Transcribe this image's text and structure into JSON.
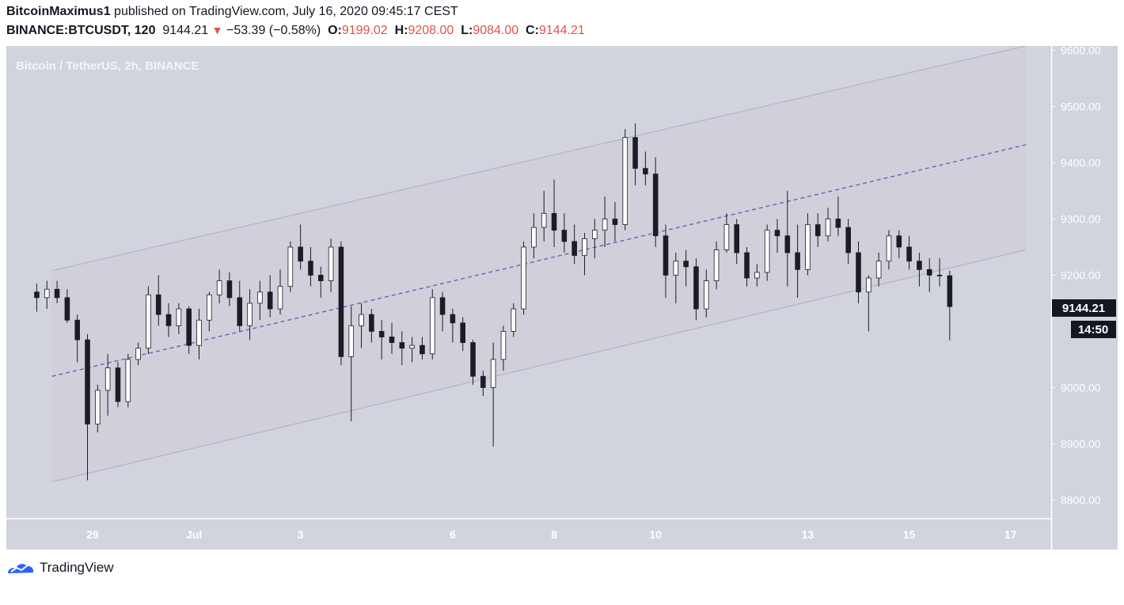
{
  "header": {
    "author": "BitcoinMaximus1",
    "published_text": "published on TradingView.com, July 16, 2020 09:45:17 CEST",
    "symbol": "BINANCE:BTCUSDT, 120",
    "last": "9144.21",
    "change": "−53.39 (−0.58%)",
    "o_label": "O:",
    "o_value": "9199.02",
    "h_label": "H:",
    "h_value": "9208.00",
    "l_label": "L:",
    "l_value": "9084.00",
    "c_label": "C:",
    "c_value": "9144.21"
  },
  "chart_title": "Bitcoin / TetherUS, 2h, BINANCE",
  "price_badge": "9144.21",
  "countdown_badge": "14:50",
  "footer": {
    "brand": "TradingView"
  },
  "colors": {
    "plot_bg": "#d1d4dc",
    "channel_fill": "#cfcbd9",
    "channel_line": "#b8aed0",
    "midline": "#7b4fae",
    "candle": "#1c1c24",
    "badge_bg": "#131722",
    "tv_blue": "#2962ff"
  },
  "chart_data": {
    "type": "candlestick",
    "title": "Bitcoin / TetherUS, 2h, BINANCE",
    "y_ticks": [
      "9600.00",
      "9500.00",
      "9400.00",
      "9300.00",
      "9200.00",
      "9000.00",
      "8900.00",
      "8800.00"
    ],
    "y_tick_values": [
      9600,
      9500,
      9400,
      9300,
      9200,
      9000,
      8900,
      8800
    ],
    "ylim": [
      8768,
      9608
    ],
    "x_ticks": [
      "29",
      "Jul",
      "3",
      "6",
      "8",
      "10",
      "13",
      "15",
      "17"
    ],
    "x_tick_values": [
      5.5,
      15.5,
      26,
      41,
      51,
      61,
      76,
      86,
      96
    ],
    "xlim": [
      -3,
      100
    ],
    "channel": {
      "upper": [
        [
          1.5,
          9208
        ],
        [
          97.5,
          9608
        ]
      ],
      "lower": [
        [
          1.5,
          8832
        ],
        [
          97.5,
          9245
        ]
      ],
      "mid": [
        [
          1.5,
          9020
        ],
        [
          97.5,
          9432
        ]
      ]
    },
    "candles": [
      [
        9170,
        9185,
        9135,
        9160
      ],
      [
        9160,
        9190,
        9140,
        9175
      ],
      [
        9175,
        9190,
        9150,
        9160
      ],
      [
        9160,
        9175,
        9115,
        9120
      ],
      [
        9120,
        9130,
        9045,
        9085
      ],
      [
        9085,
        9095,
        8835,
        8935
      ],
      [
        8935,
        9005,
        8920,
        8995
      ],
      [
        8995,
        9060,
        8950,
        9035
      ],
      [
        9035,
        9045,
        8965,
        8975
      ],
      [
        8975,
        9060,
        8965,
        9050
      ],
      [
        9050,
        9080,
        9040,
        9070
      ],
      [
        9070,
        9180,
        9060,
        9165
      ],
      [
        9165,
        9200,
        9110,
        9130
      ],
      [
        9130,
        9150,
        9090,
        9110
      ],
      [
        9110,
        9150,
        9095,
        9140
      ],
      [
        9140,
        9145,
        9060,
        9075
      ],
      [
        9075,
        9140,
        9050,
        9120
      ],
      [
        9120,
        9170,
        9100,
        9165
      ],
      [
        9165,
        9210,
        9150,
        9190
      ],
      [
        9190,
        9205,
        9145,
        9160
      ],
      [
        9160,
        9190,
        9100,
        9110
      ],
      [
        9110,
        9175,
        9085,
        9150
      ],
      [
        9150,
        9190,
        9120,
        9170
      ],
      [
        9170,
        9200,
        9125,
        9140
      ],
      [
        9140,
        9210,
        9130,
        9180
      ],
      [
        9180,
        9260,
        9170,
        9250
      ],
      [
        9250,
        9290,
        9210,
        9225
      ],
      [
        9225,
        9250,
        9180,
        9200
      ],
      [
        9200,
        9215,
        9160,
        9190
      ],
      [
        9190,
        9265,
        9170,
        9250
      ],
      [
        9250,
        9260,
        9040,
        9055
      ],
      [
        9055,
        9145,
        8940,
        9110
      ],
      [
        9110,
        9150,
        9070,
        9130
      ],
      [
        9130,
        9140,
        9080,
        9100
      ],
      [
        9100,
        9120,
        9050,
        9090
      ],
      [
        9090,
        9115,
        9060,
        9080
      ],
      [
        9080,
        9100,
        9040,
        9070
      ],
      [
        9070,
        9090,
        9045,
        9075
      ],
      [
        9075,
        9090,
        9050,
        9060
      ],
      [
        9060,
        9175,
        9050,
        9160
      ],
      [
        9160,
        9170,
        9100,
        9130
      ],
      [
        9130,
        9140,
        9080,
        9115
      ],
      [
        9115,
        9125,
        9065,
        9080
      ],
      [
        9080,
        9085,
        9005,
        9020
      ],
      [
        9020,
        9030,
        8985,
        9000
      ],
      [
        9000,
        9080,
        8895,
        9050
      ],
      [
        9050,
        9110,
        9030,
        9100
      ],
      [
        9100,
        9150,
        9090,
        9140
      ],
      [
        9140,
        9260,
        9130,
        9250
      ],
      [
        9250,
        9310,
        9230,
        9285
      ],
      [
        9285,
        9350,
        9260,
        9310
      ],
      [
        9310,
        9370,
        9250,
        9280
      ],
      [
        9280,
        9310,
        9240,
        9260
      ],
      [
        9260,
        9290,
        9220,
        9235
      ],
      [
        9235,
        9275,
        9200,
        9265
      ],
      [
        9265,
        9300,
        9230,
        9280
      ],
      [
        9280,
        9340,
        9250,
        9300
      ],
      [
        9300,
        9330,
        9260,
        9290
      ],
      [
        9290,
        9460,
        9280,
        9445
      ],
      [
        9445,
        9470,
        9360,
        9390
      ],
      [
        9390,
        9420,
        9360,
        9380
      ],
      [
        9380,
        9410,
        9250,
        9270
      ],
      [
        9270,
        9290,
        9160,
        9200
      ],
      [
        9200,
        9240,
        9150,
        9225
      ],
      [
        9225,
        9245,
        9180,
        9215
      ],
      [
        9215,
        9230,
        9120,
        9140
      ],
      [
        9140,
        9210,
        9125,
        9190
      ],
      [
        9190,
        9260,
        9175,
        9245
      ],
      [
        9245,
        9310,
        9240,
        9290
      ],
      [
        9290,
        9300,
        9220,
        9240
      ],
      [
        9240,
        9250,
        9180,
        9195
      ],
      [
        9195,
        9220,
        9180,
        9205
      ],
      [
        9205,
        9290,
        9190,
        9280
      ],
      [
        9280,
        9300,
        9240,
        9270
      ],
      [
        9270,
        9350,
        9180,
        9240
      ],
      [
        9240,
        9290,
        9160,
        9210
      ],
      [
        9210,
        9310,
        9200,
        9290
      ],
      [
        9290,
        9310,
        9250,
        9270
      ],
      [
        9270,
        9320,
        9260,
        9300
      ],
      [
        9300,
        9340,
        9270,
        9285
      ],
      [
        9285,
        9300,
        9220,
        9240
      ],
      [
        9240,
        9260,
        9150,
        9170
      ],
      [
        9170,
        9200,
        9100,
        9195
      ],
      [
        9195,
        9240,
        9180,
        9225
      ],
      [
        9225,
        9280,
        9210,
        9270
      ],
      [
        9270,
        9280,
        9230,
        9250
      ],
      [
        9250,
        9270,
        9210,
        9225
      ],
      [
        9225,
        9240,
        9180,
        9210
      ],
      [
        9210,
        9230,
        9170,
        9200
      ],
      [
        9200,
        9230,
        9180,
        9199
      ],
      [
        9199,
        9208,
        9084,
        9144
      ]
    ]
  }
}
